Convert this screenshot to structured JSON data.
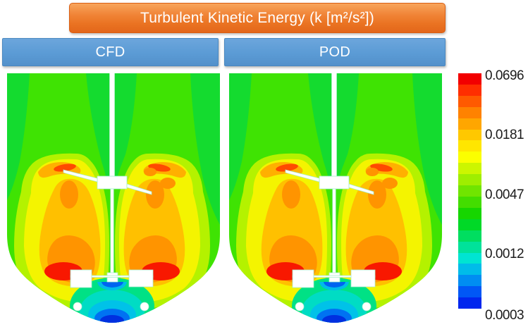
{
  "title_bar": {
    "text": "Turbulent Kinetic Energy (k [m²/s²])",
    "bg_color": "#ED7D31",
    "text_color": "#FFFFFF"
  },
  "headers": {
    "cfd": "CFD",
    "pod": "POD",
    "bg_color": "#5B9BD5",
    "text_color": "#FFFFFF"
  },
  "chart_data": {
    "type": "heatmap",
    "title": "Turbulent Kinetic Energy (k [m²/s²])",
    "variable": "k",
    "units": "m²/s²",
    "panels": [
      "CFD",
      "POD"
    ],
    "panel_content": "vertical cross-section of a stirred tank (dished bottom vessel) with central shaft, one pitched-blade impeller at mid-height and one flat-blade impeller near the bottom; CFD and POD fields are nearly identical",
    "colorbar": {
      "scale": "logarithmic",
      "min": 0.0003,
      "max": 0.0696,
      "tick_values": [
        0.0696,
        0.0181,
        0.0047,
        0.0012,
        0.0003
      ],
      "tick_labels": [
        "0.0696",
        "0.0181",
        "0.0047",
        "0.0012",
        "0.0003"
      ],
      "position": "right",
      "band_colors": [
        "#f20000",
        "#ff2e00",
        "#ff5a00",
        "#ff8200",
        "#ffa600",
        "#ffc800",
        "#ffe600",
        "#fbff00",
        "#ccf600",
        "#9fee00",
        "#70e500",
        "#43dd00",
        "#16d600",
        "#00d927",
        "#00de60",
        "#00e29a",
        "#00e4d2",
        "#00bce9",
        "#008df2",
        "#0057f6",
        "#0026ee"
      ]
    },
    "field_values_estimated": {
      "bulk_upper_tank_green": 0.005,
      "impeller_discharge_plumes_orange": 0.02,
      "bottom_blade_tip_hotspots_red": 0.06,
      "under_hub_and_bottom_center_blue": 0.0004
    }
  }
}
